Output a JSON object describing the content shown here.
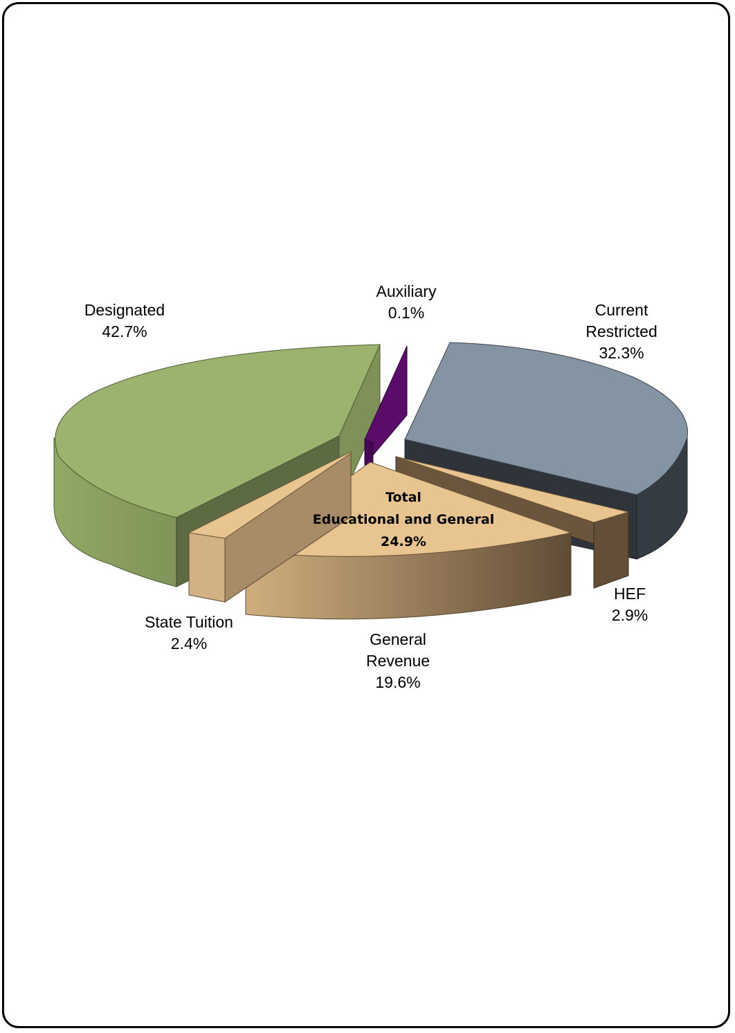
{
  "chart_data": {
    "type": "pie",
    "style": "3d-exploded",
    "title": "",
    "slices": [
      {
        "name": "Designated",
        "value": 42.7,
        "label_lines": [
          "Designated",
          "42.7%"
        ],
        "color": "#9BB36F"
      },
      {
        "name": "Auxiliary",
        "value": 0.1,
        "label_lines": [
          "Auxiliary",
          "0.1%"
        ],
        "color": "#5B0C6B"
      },
      {
        "name": "Current Restricted",
        "value": 32.3,
        "label_lines": [
          "Current",
          "Restricted",
          "32.3%"
        ],
        "color": "#8494A3"
      },
      {
        "name": "HEF",
        "value": 2.9,
        "label_lines": [
          "HEF",
          "2.9%"
        ],
        "color": "#E8C590"
      },
      {
        "name": "General Revenue",
        "value": 19.6,
        "label_lines": [
          "General",
          "Revenue",
          "19.6%"
        ],
        "color": "#E8C590"
      },
      {
        "name": "State Tuition",
        "value": 2.4,
        "label_lines": [
          "State Tuition",
          "2.4%"
        ],
        "color": "#E8C590"
      }
    ],
    "group": {
      "members": [
        "HEF",
        "General Revenue",
        "State Tuition"
      ],
      "label_lines": [
        "Total",
        "Educational and General",
        "24.9%"
      ],
      "value": 24.9
    },
    "legend": "none"
  }
}
